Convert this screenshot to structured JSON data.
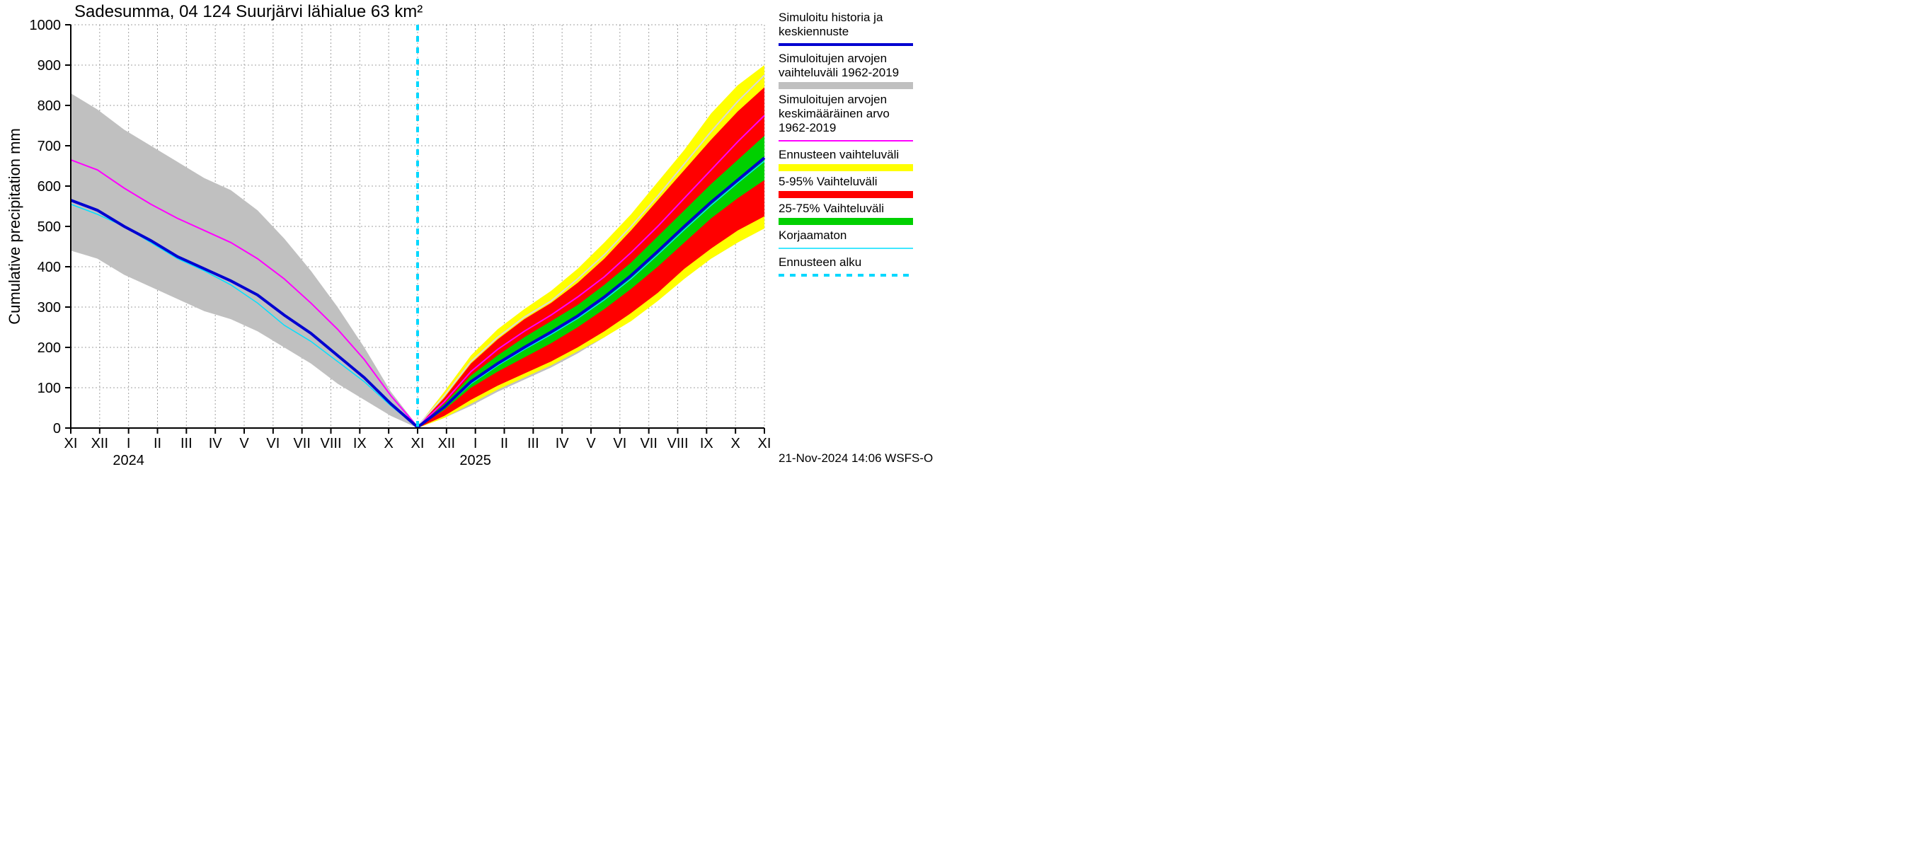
{
  "chart": {
    "type": "line-area-forecast",
    "title": "Sadesumma, 04 124 Suurjärvi lähialue 63 km²",
    "ylabel": "Cumulative precipitation   mm",
    "footer": "21-Nov-2024 14:06 WSFS-O",
    "background_color": "#ffffff",
    "grid_color": "#a0a0a0",
    "grid_dash": "2,3",
    "axis_color": "#000000",
    "ylim": [
      0,
      1000
    ],
    "ytick_step": 100,
    "x_months": [
      "XI",
      "XII",
      "I",
      "II",
      "III",
      "IV",
      "V",
      "VI",
      "VII",
      "VIII",
      "IX",
      "X",
      "XI",
      "XII",
      "I",
      "II",
      "III",
      "IV",
      "V",
      "VI",
      "VII",
      "VIII",
      "IX",
      "X",
      "XI"
    ],
    "x_year_labels": [
      {
        "at_index": 2,
        "text": "2024"
      },
      {
        "at_index": 14,
        "text": "2025"
      }
    ],
    "forecast_start_index": 12,
    "colors": {
      "simulated_history": "#0000d0",
      "range_hist": "#c0c0c0",
      "mean_hist": "#ff00ff",
      "forecast_range": "#ffff00",
      "p5_95": "#ff0000",
      "p25_75": "#00d000",
      "uncorrected": "#00e0ff",
      "forecast_start": "#00d8ff"
    },
    "line_widths": {
      "simulated_history": 4,
      "mean_hist": 2,
      "uncorrected": 1.5,
      "forecast_start": 4
    },
    "legend": [
      {
        "label_lines": [
          "Simuloitu historia ja",
          "keskiennuste"
        ],
        "type": "line",
        "color": "#0000d0",
        "width": 4
      },
      {
        "label_lines": [
          "Simuloitujen arvojen",
          "vaihteluväli 1962-2019"
        ],
        "type": "band",
        "color": "#c0c0c0"
      },
      {
        "label_lines": [
          "Simuloitujen arvojen",
          "keskimääräinen arvo",
          " 1962-2019"
        ],
        "type": "line",
        "color": "#ff00ff",
        "width": 2
      },
      {
        "label_lines": [
          "Ennusteen vaihteluväli"
        ],
        "type": "band",
        "color": "#ffff00"
      },
      {
        "label_lines": [
          "5-95% Vaihteluväli"
        ],
        "type": "band",
        "color": "#ff0000"
      },
      {
        "label_lines": [
          "25-75% Vaihteluväli"
        ],
        "type": "band",
        "color": "#00d000"
      },
      {
        "label_lines": [
          "Korjaamaton"
        ],
        "type": "line",
        "color": "#00e0ff",
        "width": 1.5
      },
      {
        "label_lines": [
          "Ennusteen alku"
        ],
        "type": "dash",
        "color": "#00d8ff",
        "width": 4
      }
    ],
    "series": {
      "hist_range_upper": [
        830,
        790,
        740,
        700,
        660,
        620,
        590,
        540,
        470,
        390,
        300,
        200,
        90,
        5
      ],
      "hist_range_lower": [
        440,
        420,
        380,
        350,
        320,
        290,
        270,
        240,
        200,
        160,
        110,
        70,
        30,
        0
      ],
      "mean_hist_left": [
        665,
        640,
        595,
        555,
        520,
        490,
        460,
        420,
        370,
        310,
        245,
        170,
        80,
        3
      ],
      "simulated_left": [
        565,
        540,
        500,
        465,
        425,
        395,
        365,
        330,
        280,
        235,
        180,
        125,
        60,
        2
      ],
      "uncorrected_left": [
        555,
        530,
        500,
        460,
        420,
        390,
        355,
        310,
        255,
        215,
        165,
        115,
        55,
        2
      ],
      "fc_range_upper": [
        5,
        90,
        180,
        245,
        295,
        340,
        395,
        460,
        530,
        610,
        690,
        780,
        850,
        900
      ],
      "fc_range_lower": [
        0,
        25,
        60,
        95,
        125,
        155,
        190,
        225,
        265,
        315,
        370,
        420,
        460,
        495
      ],
      "p5_95_upper": [
        4,
        75,
        160,
        220,
        270,
        310,
        360,
        420,
        490,
        565,
        640,
        715,
        785,
        845
      ],
      "p5_95_lower": [
        0,
        30,
        70,
        105,
        135,
        165,
        200,
        240,
        285,
        335,
        395,
        445,
        490,
        525
      ],
      "p25_75_upper": [
        3,
        60,
        130,
        180,
        225,
        265,
        305,
        355,
        410,
        475,
        540,
        605,
        665,
        725
      ],
      "p25_75_lower": [
        1,
        45,
        100,
        140,
        175,
        210,
        250,
        295,
        345,
        400,
        460,
        520,
        570,
        615
      ],
      "central_fc": [
        2,
        52,
        115,
        160,
        200,
        238,
        278,
        325,
        378,
        438,
        500,
        560,
        615,
        670
      ],
      "mean_hist_right": [
        3,
        65,
        140,
        195,
        240,
        280,
        325,
        375,
        435,
        500,
        570,
        640,
        710,
        775
      ],
      "uncorrected_right": [
        2,
        50,
        110,
        155,
        195,
        232,
        272,
        318,
        370,
        430,
        492,
        552,
        608,
        662
      ],
      "hist_range_upper_right": [
        5,
        80,
        165,
        225,
        275,
        315,
        370,
        430,
        500,
        575,
        655,
        735,
        810,
        875
      ],
      "hist_range_lower_right": [
        0,
        25,
        55,
        90,
        120,
        150,
        185,
        225,
        270,
        320,
        375,
        420,
        460,
        495
      ]
    }
  }
}
